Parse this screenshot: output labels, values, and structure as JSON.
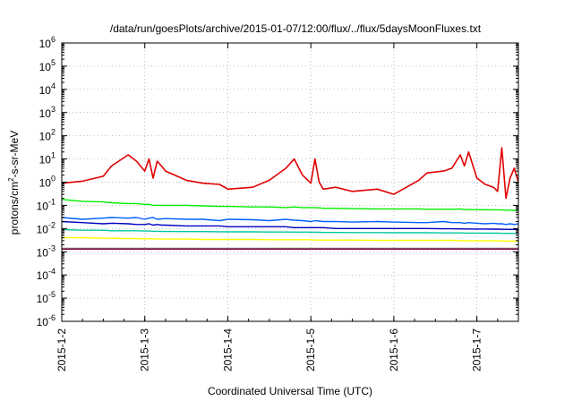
{
  "chart_data": {
    "type": "line",
    "title": "/data/run/goesPlots/archive/2015-01-07/12:00/flux/../flux/5daysMoonFluxes.txt",
    "xlabel": "Coordinated Universal Time (UTC)",
    "ylabel": "protons/cm²-s-sr-MeV",
    "ylabel_parts": {
      "prefix": "protons/cm",
      "sup": "2",
      "suffix": "-s-sr-MeV"
    },
    "x_scale": "time",
    "y_scale": "log",
    "xlim": [
      "2015-01-02 00:00",
      "2015-01-07 12:00"
    ],
    "ylim": [
      1e-06,
      1000000.0
    ],
    "grid": true,
    "x_ticks": [
      "2015-1-2",
      "2015-1-3",
      "2015-1-4",
      "2015-1-5",
      "2015-1-6",
      "2015-1-7"
    ],
    "y_ticks": [
      {
        "base": "10",
        "exp": "-6",
        "value": 1e-06
      },
      {
        "base": "10",
        "exp": "-5",
        "value": 1e-05
      },
      {
        "base": "10",
        "exp": "-4",
        "value": 0.0001
      },
      {
        "base": "10",
        "exp": "-3",
        "value": 0.001
      },
      {
        "base": "10",
        "exp": "-2",
        "value": 0.01
      },
      {
        "base": "10",
        "exp": "-1",
        "value": 0.1
      },
      {
        "base": "10",
        "exp": "0",
        "value": 1
      },
      {
        "base": "10",
        "exp": "1",
        "value": 10
      },
      {
        "base": "10",
        "exp": "2",
        "value": 100
      },
      {
        "base": "10",
        "exp": "3",
        "value": 1000
      },
      {
        "base": "10",
        "exp": "4",
        "value": 10000
      },
      {
        "base": "10",
        "exp": "5",
        "value": 100000
      },
      {
        "base": "10",
        "exp": "6",
        "value": 1000000
      }
    ],
    "x_days": [
      0.0,
      0.25,
      0.5,
      0.6,
      0.8,
      0.9,
      1.0,
      1.05,
      1.1,
      1.15,
      1.2,
      1.25,
      1.5,
      1.7,
      1.9,
      2.0,
      2.3,
      2.5,
      2.7,
      2.8,
      2.9,
      3.0,
      3.05,
      3.1,
      3.15,
      3.3,
      3.5,
      3.8,
      4.0,
      4.3,
      4.4,
      4.6,
      4.7,
      4.8,
      4.85,
      4.9,
      5.0,
      5.1,
      5.2,
      5.25,
      5.3,
      5.35,
      5.4,
      5.45,
      5.5
    ],
    "series": [
      {
        "color": "#e00000",
        "values": [
          0.9,
          1.1,
          1.8,
          5,
          15,
          8,
          3,
          10,
          1.5,
          8,
          5,
          3,
          1.2,
          0.9,
          0.8,
          0.5,
          0.6,
          1.2,
          4,
          10,
          2,
          0.9,
          10,
          1.0,
          0.5,
          0.6,
          0.4,
          0.5,
          0.3,
          1.2,
          2.5,
          3,
          4,
          15,
          5,
          20,
          1.5,
          0.8,
          0.6,
          0.4,
          30,
          0.2,
          1.5,
          4,
          1.0
        ]
      },
      {
        "color": "#00ee00",
        "values": [
          0.18,
          0.15,
          0.14,
          0.13,
          0.12,
          0.12,
          0.11,
          0.11,
          0.1,
          0.1,
          0.1,
          0.1,
          0.1,
          0.095,
          0.09,
          0.09,
          0.085,
          0.085,
          0.08,
          0.085,
          0.08,
          0.08,
          0.08,
          0.078,
          0.075,
          0.075,
          0.072,
          0.07,
          0.07,
          0.07,
          0.068,
          0.068,
          0.068,
          0.07,
          0.066,
          0.066,
          0.065,
          0.065,
          0.064,
          0.064,
          0.063,
          0.062,
          0.062,
          0.061,
          0.06
        ]
      },
      {
        "color": "#0060ff",
        "values": [
          0.03,
          0.025,
          0.028,
          0.03,
          0.028,
          0.03,
          0.025,
          0.028,
          0.03,
          0.025,
          0.026,
          0.027,
          0.025,
          0.025,
          0.022,
          0.025,
          0.024,
          0.022,
          0.025,
          0.023,
          0.022,
          0.02,
          0.022,
          0.021,
          0.02,
          0.02,
          0.019,
          0.02,
          0.019,
          0.018,
          0.018,
          0.02,
          0.018,
          0.018,
          0.017,
          0.018,
          0.017,
          0.016,
          0.017,
          0.016,
          0.016,
          0.015,
          0.016,
          0.015,
          0.016
        ]
      },
      {
        "color": "#0000c0",
        "values": [
          0.02,
          0.018,
          0.016,
          0.017,
          0.016,
          0.015,
          0.015,
          0.016,
          0.014,
          0.015,
          0.014,
          0.014,
          0.013,
          0.013,
          0.013,
          0.012,
          0.012,
          0.012,
          0.012,
          0.011,
          0.011,
          0.011,
          0.011,
          0.011,
          0.011,
          0.01,
          0.01,
          0.01,
          0.01,
          0.01,
          0.01,
          0.0098,
          0.0098,
          0.0097,
          0.0096,
          0.0096,
          0.0095,
          0.0095,
          0.0094,
          0.0094,
          0.0093,
          0.0093,
          0.0092,
          0.0092,
          0.0091
        ]
      },
      {
        "color": "#00c8a0",
        "values": [
          0.009,
          0.0085,
          0.0085,
          0.008,
          0.008,
          0.008,
          0.0078,
          0.0078,
          0.0076,
          0.0076,
          0.0075,
          0.0075,
          0.0074,
          0.0074,
          0.0073,
          0.0072,
          0.0072,
          0.0071,
          0.0071,
          0.007,
          0.007,
          0.007,
          0.0069,
          0.0069,
          0.0068,
          0.0068,
          0.0067,
          0.0067,
          0.0066,
          0.0066,
          0.0066,
          0.0065,
          0.0065,
          0.0065,
          0.0064,
          0.0064,
          0.0064,
          0.0063,
          0.0063,
          0.0063,
          0.0062,
          0.0062,
          0.0062,
          0.0061,
          0.0061
        ]
      },
      {
        "color": "#ffff00",
        "values": [
          0.004,
          0.004,
          0.0038,
          0.0038,
          0.0037,
          0.0037,
          0.0036,
          0.0036,
          0.0036,
          0.0035,
          0.0035,
          0.0035,
          0.0035,
          0.0034,
          0.0034,
          0.0034,
          0.0034,
          0.0033,
          0.0033,
          0.0033,
          0.0033,
          0.0033,
          0.0032,
          0.0032,
          0.0032,
          0.0032,
          0.0032,
          0.0031,
          0.0031,
          0.0031,
          0.0031,
          0.0031,
          0.0031,
          0.003,
          0.003,
          0.003,
          0.003,
          0.003,
          0.003,
          0.003,
          0.0029,
          0.0029,
          0.0029,
          0.0029,
          0.0029
        ]
      },
      {
        "color": "#808080",
        "values": [
          0.0014,
          0.0014,
          0.0014,
          0.0014,
          0.0014,
          0.0014,
          0.0014,
          0.0014,
          0.0014,
          0.0014,
          0.0014,
          0.0014,
          0.0014,
          0.0014,
          0.0014,
          0.0014,
          0.0014,
          0.0014,
          0.0014,
          0.0014,
          0.0014,
          0.0014,
          0.0014,
          0.0014,
          0.0014,
          0.0014,
          0.0014,
          0.0014,
          0.0014,
          0.0014,
          0.0014,
          0.0014,
          0.0014,
          0.0014,
          0.0014,
          0.0014,
          0.0014,
          0.0014,
          0.0014,
          0.0014,
          0.0014,
          0.0014,
          0.0014,
          0.0014,
          0.0014
        ]
      },
      {
        "color": "#800040",
        "values": [
          0.0013,
          0.0013,
          0.0013,
          0.0013,
          0.0013,
          0.0013,
          0.0013,
          0.0013,
          0.0013,
          0.0013,
          0.0013,
          0.0013,
          0.0013,
          0.0013,
          0.0013,
          0.0013,
          0.0013,
          0.0013,
          0.0013,
          0.0013,
          0.0013,
          0.0013,
          0.0013,
          0.0013,
          0.0013,
          0.0013,
          0.0013,
          0.0013,
          0.0013,
          0.0013,
          0.0013,
          0.0013,
          0.0013,
          0.0013,
          0.0013,
          0.0013,
          0.0013,
          0.0013,
          0.0013,
          0.0013,
          0.0013,
          0.0013,
          0.0013,
          0.0013,
          0.0013
        ]
      }
    ]
  }
}
